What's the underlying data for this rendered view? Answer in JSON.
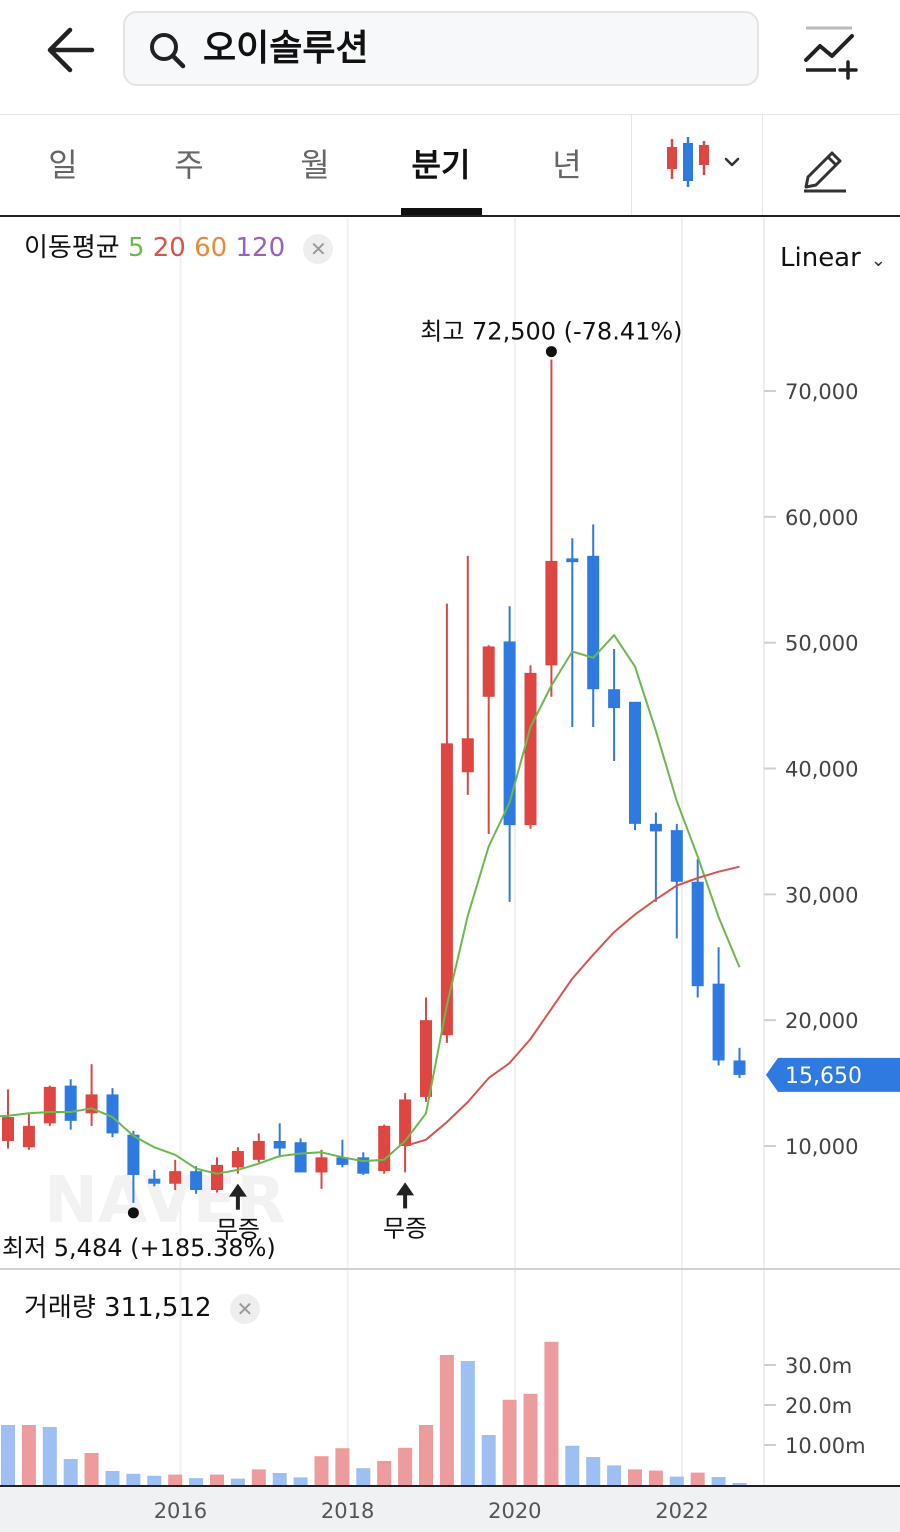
{
  "header": {
    "back_icon": "arrow-left-icon",
    "search_text": "오이솔루션",
    "search_icon": "search-icon",
    "compare_icon": "chart-compare-add-icon"
  },
  "tabs": [
    {
      "label": "일",
      "active": false
    },
    {
      "label": "주",
      "active": false
    },
    {
      "label": "월",
      "active": false
    },
    {
      "label": "분기",
      "active": true
    },
    {
      "label": "년",
      "active": false
    }
  ],
  "toolbar": {
    "chart_type_icon": "candlestick-icon",
    "draw_icon": "pencil-icon"
  },
  "ma_legend": {
    "label": "이동평균",
    "p5": "5",
    "p20": "20",
    "p60": "60",
    "p120": "120"
  },
  "scale_select": {
    "value": "Linear"
  },
  "volume_legend": {
    "label": "거래량",
    "value": "311,512"
  },
  "colors": {
    "up": "#dd4641",
    "down": "#2f7ae0",
    "ma5": "#6bb84f",
    "ma20": "#d7544d",
    "vol_up": "#ec9c9c",
    "vol_down": "#9dbff2",
    "current_price": "#2f7ae0"
  },
  "chart_data": {
    "type": "candlestick",
    "watermark": "NAVER",
    "price_axis": {
      "ticks": [
        10000,
        20000,
        30000,
        40000,
        50000,
        60000,
        70000
      ],
      "tick_labels": [
        "10,000",
        "20,000",
        "30,000",
        "40,000",
        "50,000",
        "60,000",
        "70,000"
      ]
    },
    "volume_axis": {
      "ticks": [
        10000000,
        20000000,
        30000000
      ],
      "tick_labels": [
        "10.00m",
        "20.0m",
        "30.0m"
      ]
    },
    "x_axis": {
      "labels": [
        "2016",
        "2018",
        "2020",
        "2022"
      ],
      "label_index": [
        8.25,
        16.25,
        24.25,
        32.25
      ]
    },
    "current_price": {
      "value": 15650,
      "label": "15,650"
    },
    "annotations": {
      "high": {
        "index": 26,
        "value": 72500,
        "text": "최고 72,500 (-78.41%)"
      },
      "low": {
        "index": 6,
        "value": 5484,
        "text": "최저 5,484 (+185.38%)"
      }
    },
    "events": [
      {
        "index": 11,
        "label": "무증"
      },
      {
        "index": 19,
        "label": "무증"
      }
    ],
    "candles": [
      {
        "o": 10400,
        "h": 14500,
        "l": 9800,
        "c": 12300
      },
      {
        "o": 9900,
        "h": 12600,
        "l": 9700,
        "c": 11600
      },
      {
        "o": 11800,
        "h": 14800,
        "l": 11600,
        "c": 14700
      },
      {
        "o": 14800,
        "h": 15300,
        "l": 11300,
        "c": 12000
      },
      {
        "o": 12600,
        "h": 16500,
        "l": 11600,
        "c": 14100
      },
      {
        "o": 14100,
        "h": 14600,
        "l": 10700,
        "c": 11000
      },
      {
        "o": 10900,
        "h": 11200,
        "l": 5484,
        "c": 7700
      },
      {
        "o": 7400,
        "h": 8100,
        "l": 6800,
        "c": 7000
      },
      {
        "o": 7000,
        "h": 8900,
        "l": 6500,
        "c": 8000
      },
      {
        "o": 8000,
        "h": 8400,
        "l": 6200,
        "c": 6500
      },
      {
        "o": 6500,
        "h": 9100,
        "l": 6300,
        "c": 8500
      },
      {
        "o": 8300,
        "h": 9900,
        "l": 7800,
        "c": 9600
      },
      {
        "o": 8900,
        "h": 11000,
        "l": 8700,
        "c": 10400
      },
      {
        "o": 10400,
        "h": 11800,
        "l": 9100,
        "c": 9800
      },
      {
        "o": 10300,
        "h": 10600,
        "l": 7900,
        "c": 7900
      },
      {
        "o": 7900,
        "h": 9700,
        "l": 6600,
        "c": 9100
      },
      {
        "o": 9100,
        "h": 10500,
        "l": 8300,
        "c": 8500
      },
      {
        "o": 9100,
        "h": 9500,
        "l": 7700,
        "c": 7800
      },
      {
        "o": 8000,
        "h": 11700,
        "l": 7800,
        "c": 11600
      },
      {
        "o": 10000,
        "h": 14200,
        "l": 7900,
        "c": 13700
      },
      {
        "o": 13900,
        "h": 21800,
        "l": 13500,
        "c": 20000
      },
      {
        "o": 18800,
        "h": 53100,
        "l": 18200,
        "c": 42000
      },
      {
        "o": 39700,
        "h": 56900,
        "l": 37900,
        "c": 42400
      },
      {
        "o": 45700,
        "h": 49800,
        "l": 34800,
        "c": 49700
      },
      {
        "o": 50100,
        "h": 52900,
        "l": 29400,
        "c": 35500
      },
      {
        "o": 35500,
        "h": 48200,
        "l": 35200,
        "c": 47600
      },
      {
        "o": 48200,
        "h": 72500,
        "l": 45700,
        "c": 56500
      },
      {
        "o": 56700,
        "h": 58300,
        "l": 43300,
        "c": 56400
      },
      {
        "o": 56900,
        "h": 59400,
        "l": 43300,
        "c": 46300
      },
      {
        "o": 46300,
        "h": 49500,
        "l": 40600,
        "c": 44800
      },
      {
        "o": 45300,
        "h": 45300,
        "l": 35100,
        "c": 35600
      },
      {
        "o": 35600,
        "h": 36500,
        "l": 29400,
        "c": 35000
      },
      {
        "o": 35100,
        "h": 35600,
        "l": 26500,
        "c": 31000
      },
      {
        "o": 31000,
        "h": 32800,
        "l": 21800,
        "c": 22700
      },
      {
        "o": 22900,
        "h": 25800,
        "l": 16400,
        "c": 16800
      },
      {
        "o": 16800,
        "h": 17800,
        "l": 15400,
        "c": 15650
      }
    ],
    "ma5": [
      [
        4,
        13000
      ],
      [
        5,
        12300
      ],
      [
        6,
        10800
      ],
      [
        7,
        9900
      ],
      [
        8,
        9300
      ],
      [
        9,
        8200
      ],
      [
        10,
        7800
      ],
      [
        11,
        8100
      ],
      [
        12,
        8600
      ],
      [
        13,
        9200
      ],
      [
        14,
        9400
      ],
      [
        15,
        9500
      ],
      [
        16,
        9100
      ],
      [
        17,
        8800
      ],
      [
        18,
        8900
      ],
      [
        19,
        10400
      ],
      [
        20,
        12600
      ],
      [
        21,
        21200
      ],
      [
        22,
        28300
      ],
      [
        23,
        33800
      ],
      [
        24,
        37300
      ],
      [
        25,
        43300
      ],
      [
        26,
        46600
      ],
      [
        27,
        49300
      ],
      [
        28,
        48800
      ],
      [
        29,
        50600
      ],
      [
        30,
        48100
      ],
      [
        31,
        43000
      ],
      [
        32,
        37400
      ],
      [
        33,
        33000
      ],
      [
        34,
        28200
      ],
      [
        35,
        24200
      ]
    ],
    "ma20": [
      [
        19,
        10000
      ],
      [
        20,
        10500
      ],
      [
        21,
        11900
      ],
      [
        22,
        13500
      ],
      [
        23,
        15400
      ],
      [
        24,
        16600
      ],
      [
        25,
        18500
      ],
      [
        26,
        20900
      ],
      [
        27,
        23300
      ],
      [
        28,
        25200
      ],
      [
        29,
        27000
      ],
      [
        30,
        28400
      ],
      [
        31,
        29600
      ],
      [
        32,
        30700
      ],
      [
        33,
        31300
      ],
      [
        34,
        31800
      ],
      [
        35,
        32200
      ]
    ],
    "volumes": [
      {
        "v": 15000000,
        "up": false
      },
      {
        "v": 15000000,
        "up": true
      },
      {
        "v": 14500000,
        "up": false
      },
      {
        "v": 6500000,
        "up": false
      },
      {
        "v": 8000000,
        "up": true
      },
      {
        "v": 3500000,
        "up": false
      },
      {
        "v": 2800000,
        "up": false
      },
      {
        "v": 2300000,
        "up": false
      },
      {
        "v": 2600000,
        "up": true
      },
      {
        "v": 1700000,
        "up": false
      },
      {
        "v": 2600000,
        "up": true
      },
      {
        "v": 1600000,
        "up": false
      },
      {
        "v": 3900000,
        "up": true
      },
      {
        "v": 3000000,
        "up": false
      },
      {
        "v": 1900000,
        "up": false
      },
      {
        "v": 7200000,
        "up": true
      },
      {
        "v": 9200000,
        "up": true
      },
      {
        "v": 4200000,
        "up": false
      },
      {
        "v": 6000000,
        "up": true
      },
      {
        "v": 9300000,
        "up": true
      },
      {
        "v": 15000000,
        "up": true
      },
      {
        "v": 32500000,
        "up": true
      },
      {
        "v": 31000000,
        "up": false
      },
      {
        "v": 12500000,
        "up": false
      },
      {
        "v": 21300000,
        "up": true
      },
      {
        "v": 22800000,
        "up": true
      },
      {
        "v": 35800000,
        "up": true
      },
      {
        "v": 9800000,
        "up": false
      },
      {
        "v": 7000000,
        "up": false
      },
      {
        "v": 4900000,
        "up": false
      },
      {
        "v": 3900000,
        "up": true
      },
      {
        "v": 3600000,
        "up": true
      },
      {
        "v": 2100000,
        "up": false
      },
      {
        "v": 3100000,
        "up": true
      },
      {
        "v": 2000000,
        "up": false
      },
      {
        "v": 500000,
        "up": false
      }
    ]
  }
}
